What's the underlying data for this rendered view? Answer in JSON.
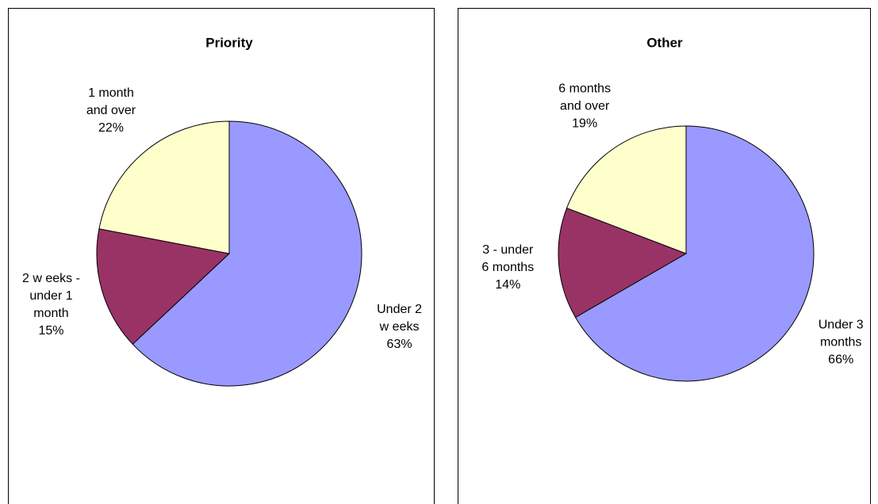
{
  "chart_data": [
    {
      "type": "pie",
      "title": "Priority",
      "categories": [
        [
          "Under 2",
          "w eeks"
        ],
        [
          "2 w eeks -",
          "under 1",
          "month"
        ],
        [
          "1 month",
          "and over"
        ]
      ],
      "values": [
        63,
        15,
        22
      ],
      "value_labels": [
        "63%",
        "15%",
        "22%"
      ],
      "colors": [
        "#9999ff",
        "#993366",
        "#ffffcc"
      ]
    },
    {
      "type": "pie",
      "title": "Other",
      "categories": [
        [
          "Under 3",
          "months"
        ],
        [
          "3 - under",
          "6 months"
        ],
        [
          "6 months",
          "and over"
        ]
      ],
      "values": [
        66,
        14,
        19
      ],
      "value_labels": [
        "66%",
        "14%",
        "19%"
      ],
      "colors": [
        "#9999ff",
        "#993366",
        "#ffffcc"
      ]
    }
  ]
}
